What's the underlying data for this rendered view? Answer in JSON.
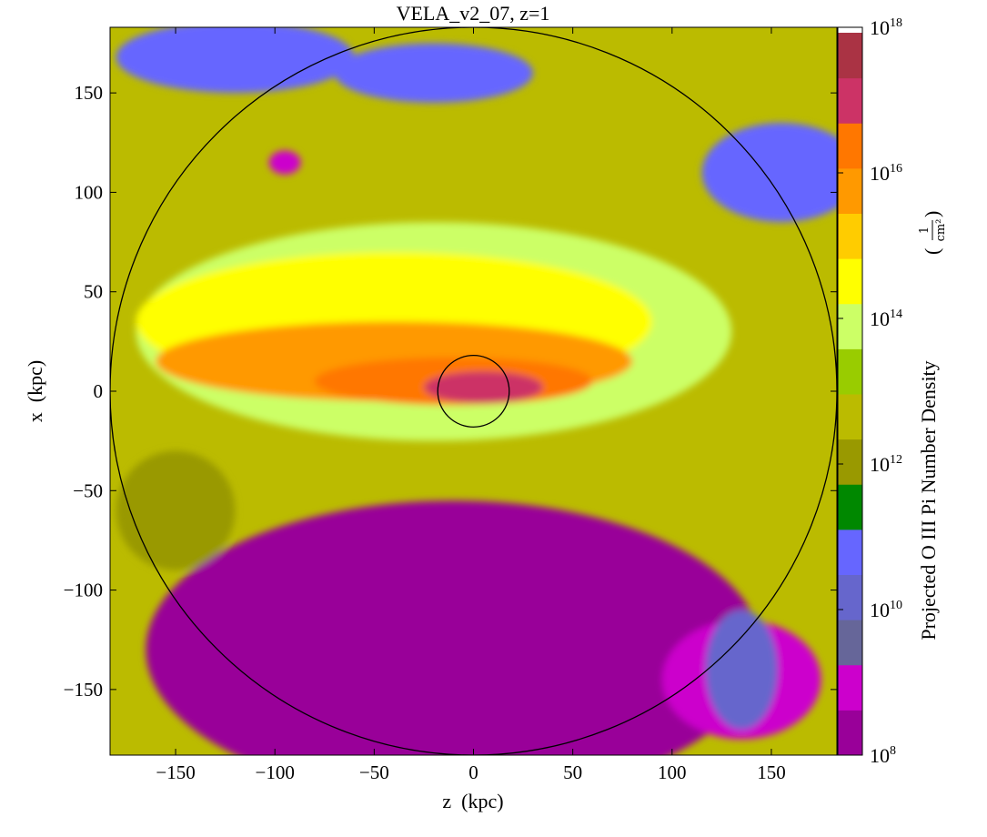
{
  "chart_data": {
    "type": "heatmap",
    "title": "VELA_v2_07, z=1",
    "xlabel": "z  (kpc)",
    "ylabel": "x  (kpc)",
    "xlim": [
      -183,
      183
    ],
    "ylim": [
      -183,
      183
    ],
    "xticks": [
      "−150",
      "−100",
      "−50",
      "0",
      "50",
      "100",
      "150"
    ],
    "xtick_values": [
      -150,
      -100,
      -50,
      0,
      50,
      100,
      150
    ],
    "yticks": [
      "150",
      "100",
      "50",
      "0",
      "−50",
      "−100",
      "−150"
    ],
    "ytick_values": [
      150,
      100,
      50,
      0,
      -50,
      -100,
      -150
    ],
    "colorbar": {
      "label": "Projected O III Pi Number Density",
      "unit_numerator": "1",
      "unit_denominator": "cm²",
      "scale": "log",
      "range": [
        100000000.0,
        1e+18
      ],
      "tick_base": "10",
      "tick_exponents": [
        "18",
        "16",
        "14",
        "12",
        "10",
        "8"
      ],
      "tick_values": [
        18,
        16,
        14,
        12,
        10,
        8
      ],
      "colors": [
        "#990099",
        "#cc00cc",
        "#666699",
        "#6666cc",
        "#6666ff",
        "#008800",
        "#999900",
        "#bbbb00",
        "#99cc00",
        "#ccff66",
        "#ffff00",
        "#ffcc00",
        "#ff9900",
        "#ff7700",
        "#cc3366",
        "#aa3344"
      ],
      "over_color": "#ffffff"
    },
    "circles": [
      {
        "name": "virial-radius",
        "center": [
          0,
          0
        ],
        "radius": 183
      },
      {
        "name": "inner-radius",
        "center": [
          0,
          0
        ],
        "radius": 18
      }
    ],
    "regions": [
      {
        "name": "upper-blue-left",
        "level": 11,
        "shape": "ellipse",
        "cx": -120,
        "cy": 168,
        "rx": 60,
        "ry": 18
      },
      {
        "name": "upper-blue-mid",
        "level": 11,
        "shape": "ellipse",
        "cx": -20,
        "cy": 160,
        "rx": 50,
        "ry": 15
      },
      {
        "name": "upper-right-blue",
        "level": 11,
        "shape": "ellipse",
        "cx": 155,
        "cy": 110,
        "rx": 40,
        "ry": 25
      },
      {
        "name": "upper-magenta",
        "level": 9,
        "shape": "ellipse",
        "cx": -95,
        "cy": 115,
        "rx": 8,
        "ry": 6
      },
      {
        "name": "bottom-black",
        "level": 7,
        "shape": "ellipse",
        "cx": -10,
        "cy": -130,
        "rx": 155,
        "ry": 75
      },
      {
        "name": "bottom-right-magenta",
        "level": 9,
        "shape": "ellipse",
        "cx": 135,
        "cy": -145,
        "rx": 40,
        "ry": 30
      },
      {
        "name": "bottom-right-grey",
        "level": 10,
        "shape": "ellipse",
        "cx": 135,
        "cy": -140,
        "rx": 18,
        "ry": 30
      },
      {
        "name": "left-lower-green",
        "level": 12,
        "shape": "ellipse",
        "cx": -150,
        "cy": -60,
        "rx": 30,
        "ry": 30
      },
      {
        "name": "lightgreen-halo",
        "level": 14,
        "shape": "ellipse",
        "cx": -20,
        "cy": 30,
        "rx": 150,
        "ry": 55
      },
      {
        "name": "yellow-band",
        "level": 14.5,
        "shape": "ellipse",
        "cx": -40,
        "cy": 35,
        "rx": 130,
        "ry": 35
      },
      {
        "name": "orange-stream",
        "level": 15.5,
        "shape": "ellipse",
        "cx": -40,
        "cy": 15,
        "rx": 120,
        "ry": 20
      },
      {
        "name": "dark-orange-core",
        "level": 16.2,
        "shape": "ellipse",
        "cx": -10,
        "cy": 5,
        "rx": 70,
        "ry": 12
      },
      {
        "name": "central-magenta",
        "level": 17,
        "shape": "ellipse",
        "cx": 5,
        "cy": 2,
        "rx": 30,
        "ry": 8
      }
    ]
  }
}
